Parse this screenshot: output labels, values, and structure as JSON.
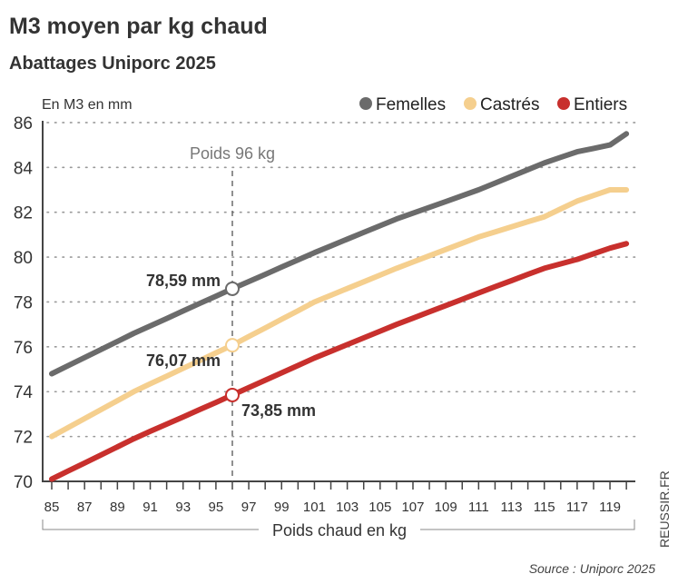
{
  "chart_data": {
    "type": "line",
    "title": "M3 moyen par kg chaud",
    "subtitle": "Abattages Uniporc 2025",
    "ylabel": "En M3 en mm",
    "xlabel": "Poids chaud en kg",
    "ylim": [
      70,
      86
    ],
    "xlim": [
      85,
      120
    ],
    "yticks": [
      "70",
      "72",
      "74",
      "76",
      "78",
      "80",
      "82",
      "84",
      "86"
    ],
    "xticks": [
      "85",
      "87",
      "89",
      "91",
      "93",
      "95",
      "97",
      "99",
      "101",
      "103",
      "105",
      "107",
      "109",
      "111",
      "113",
      "115",
      "117",
      "119"
    ],
    "grid": "horizontal dotted",
    "legend_position": "top-right",
    "x": [
      85,
      86,
      87,
      88,
      89,
      90,
      91,
      92,
      93,
      94,
      95,
      96,
      97,
      98,
      99,
      100,
      101,
      102,
      103,
      104,
      105,
      106,
      107,
      108,
      109,
      110,
      111,
      112,
      113,
      114,
      115,
      116,
      117,
      118,
      119,
      120
    ],
    "series": [
      {
        "name": "Femelles",
        "color": "#6b6b6b",
        "values": [
          74.8,
          75.16,
          75.52,
          75.88,
          76.24,
          76.6,
          76.93,
          77.26,
          77.6,
          77.93,
          78.26,
          78.59,
          78.91,
          79.23,
          79.56,
          79.88,
          80.2,
          80.5,
          80.8,
          81.1,
          81.4,
          81.7,
          81.96,
          82.22,
          82.48,
          82.74,
          83.0,
          83.3,
          83.6,
          83.9,
          84.2,
          84.45,
          84.7,
          84.85,
          85.0,
          85.5
        ]
      },
      {
        "name": "Castrés",
        "color": "#f5cf8e",
        "values": [
          72.0,
          72.4,
          72.8,
          73.2,
          73.6,
          74.0,
          74.35,
          74.69,
          75.04,
          75.38,
          75.73,
          76.07,
          76.46,
          76.84,
          77.23,
          77.61,
          78.0,
          78.3,
          78.6,
          78.9,
          79.2,
          79.5,
          79.78,
          80.06,
          80.34,
          80.62,
          80.9,
          81.12,
          81.35,
          81.58,
          81.8,
          82.15,
          82.5,
          82.75,
          83.0,
          83.0
        ]
      },
      {
        "name": "Entiers",
        "color": "#c8302d",
        "values": [
          70.1,
          70.46,
          70.82,
          71.18,
          71.54,
          71.9,
          72.23,
          72.55,
          72.87,
          73.2,
          73.52,
          73.85,
          74.18,
          74.51,
          74.84,
          75.17,
          75.5,
          75.8,
          76.1,
          76.4,
          76.7,
          77.0,
          77.28,
          77.56,
          77.84,
          78.12,
          78.4,
          78.68,
          78.95,
          79.23,
          79.5,
          79.7,
          79.9,
          80.15,
          80.4,
          80.6
        ]
      }
    ],
    "reference_line": {
      "x": 96,
      "label": "Poids 96 kg"
    },
    "annotations": [
      {
        "series": "Femelles",
        "x": 96,
        "y": 78.59,
        "label": "78,59 mm"
      },
      {
        "series": "Castrés",
        "x": 96,
        "y": 76.07,
        "label": "76,07 mm"
      },
      {
        "series": "Entiers",
        "x": 96,
        "y": 73.85,
        "label": "73,85 mm"
      }
    ]
  },
  "source": "Source : Uniporc 2025",
  "brand": "REUSSIR.FR"
}
